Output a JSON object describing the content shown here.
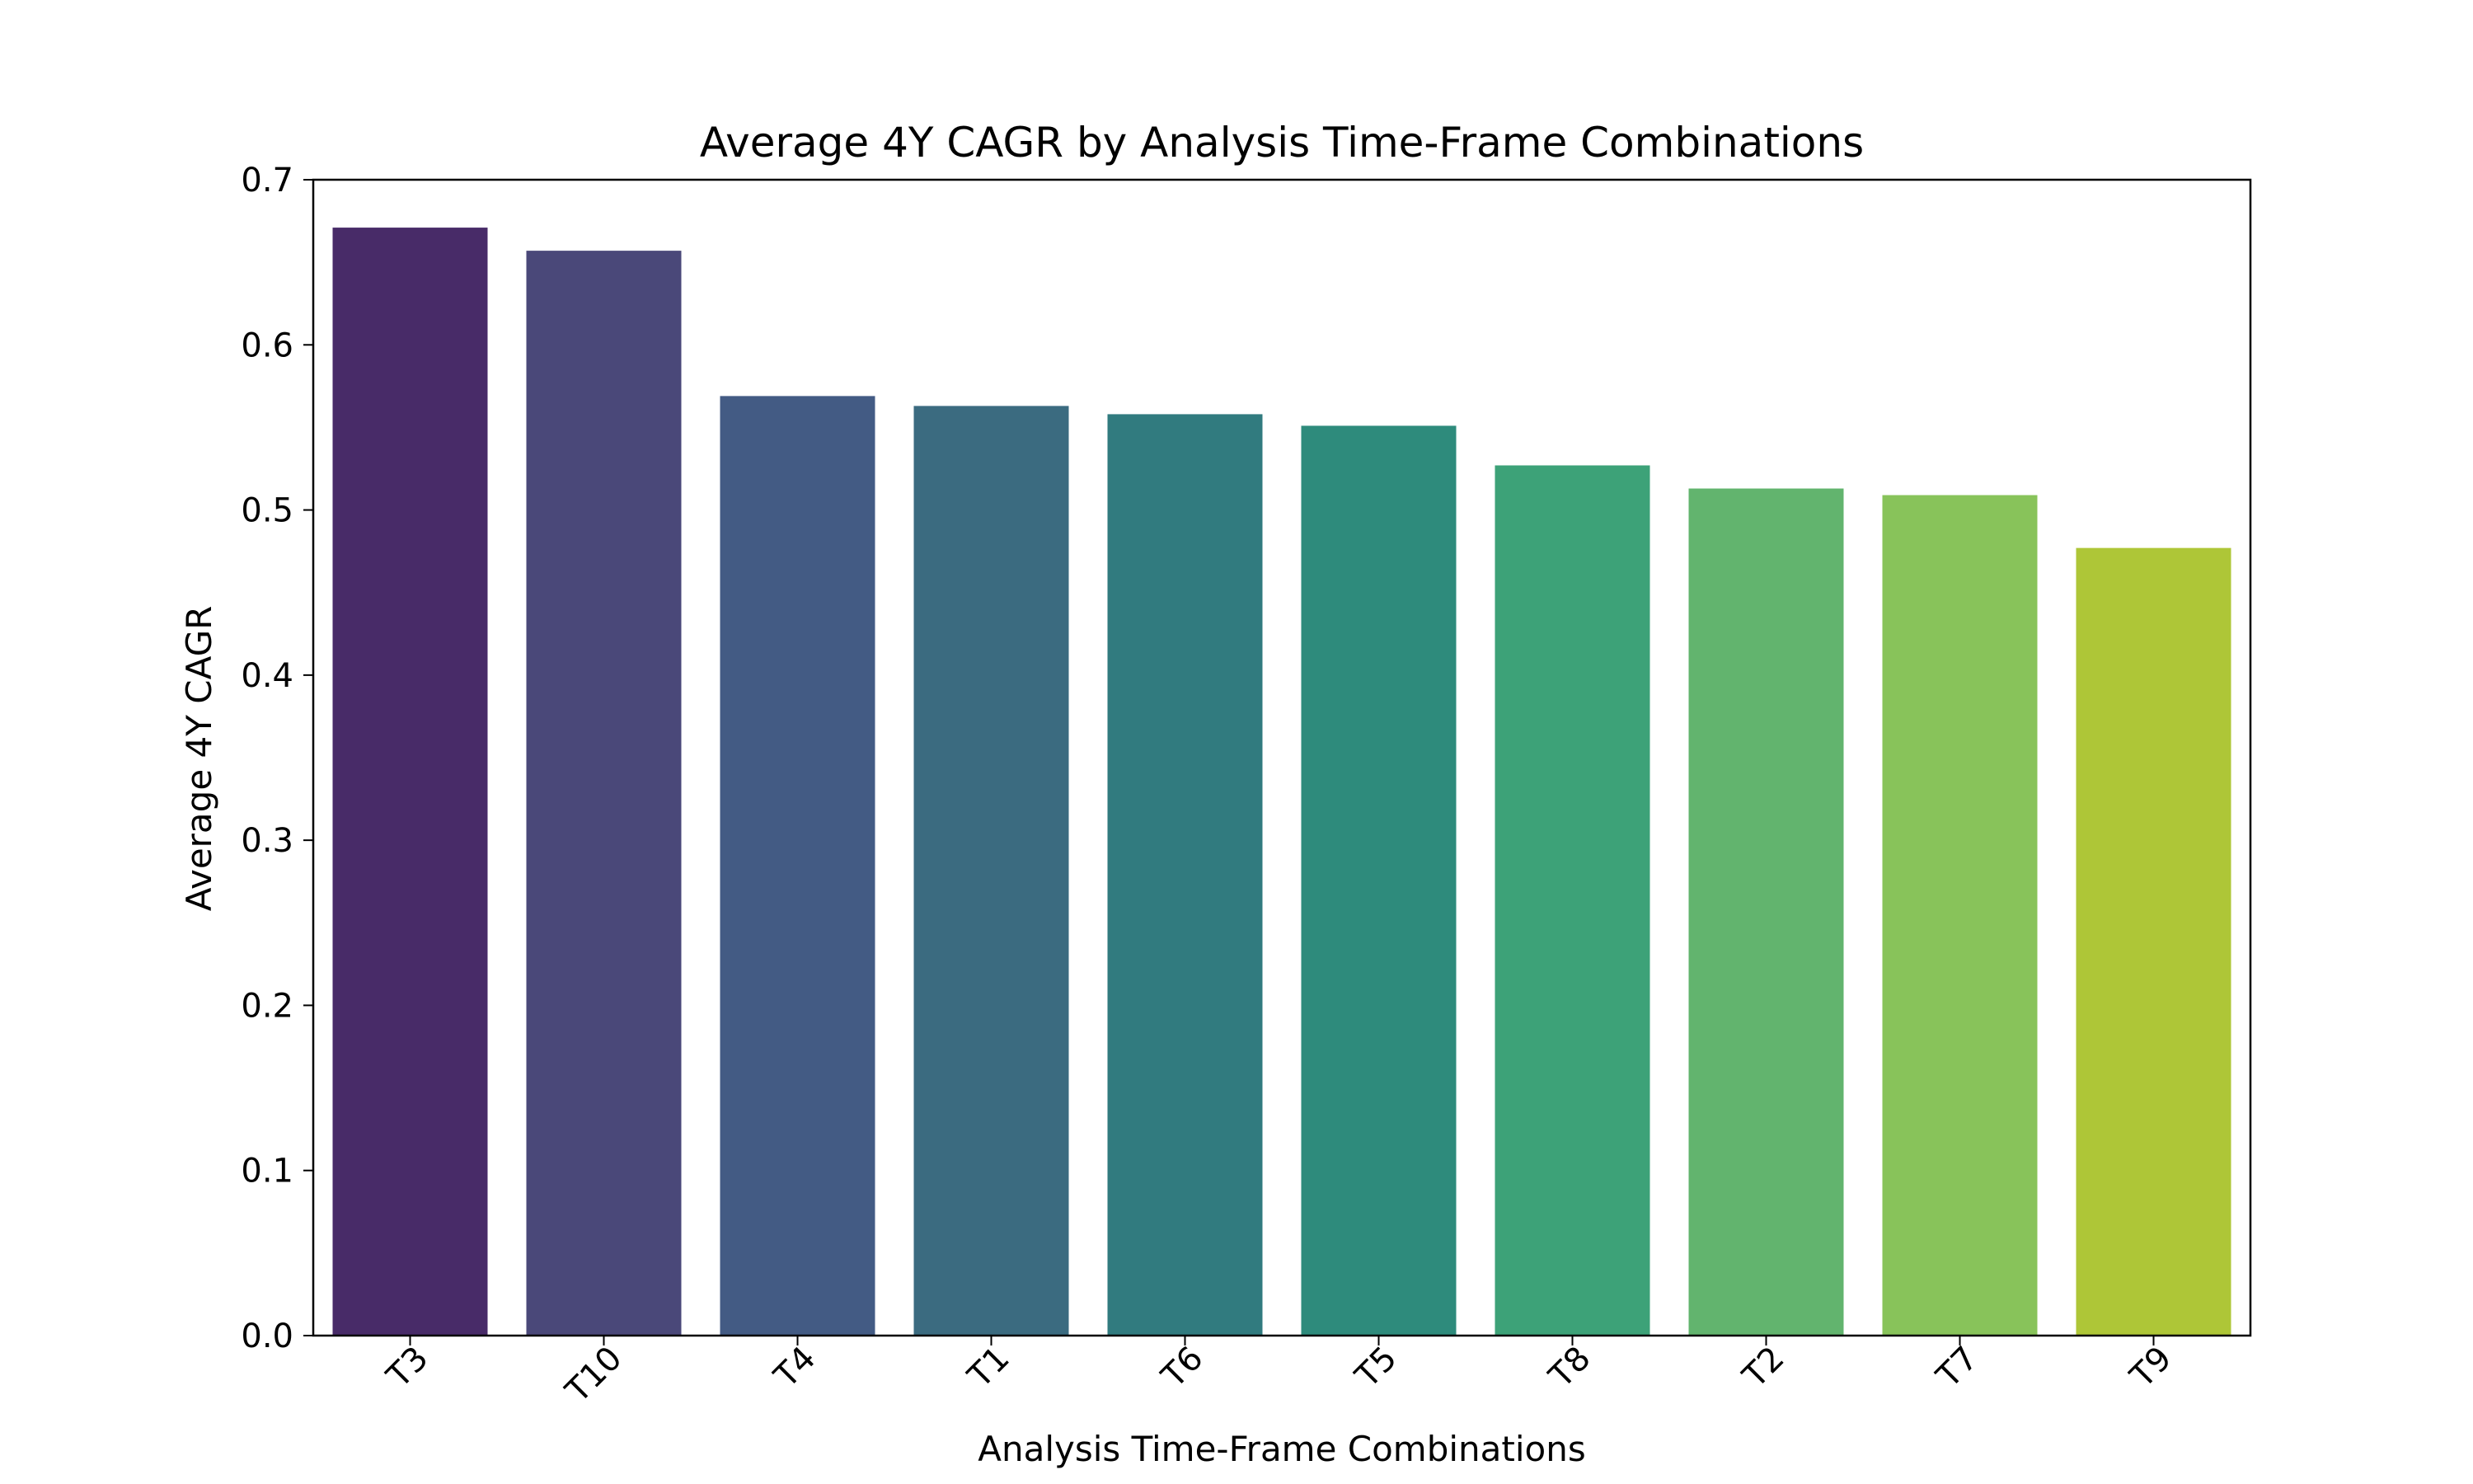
{
  "chart_data": {
    "type": "bar",
    "title": "Average 4Y CAGR by Analysis Time-Frame Combinations",
    "xlabel": "Analysis Time-Frame Combinations",
    "ylabel": "Average 4Y CAGR",
    "categories": [
      "T3",
      "T10",
      "T4",
      "T1",
      "T6",
      "T5",
      "T8",
      "T2",
      "T7",
      "T9"
    ],
    "values": [
      0.671,
      0.657,
      0.569,
      0.563,
      0.558,
      0.551,
      0.527,
      0.513,
      0.509,
      0.477
    ],
    "colors": [
      "#482b68",
      "#4a4879",
      "#435b84",
      "#3b6b80",
      "#317b7f",
      "#2e8b7c",
      "#3da278",
      "#62b46e",
      "#88c35a",
      "#aec637"
    ],
    "ylim": [
      0,
      0.7
    ],
    "yticks": [
      0.0,
      0.1,
      0.2,
      0.3,
      0.4,
      0.5,
      0.6,
      0.7
    ],
    "ytick_labels": [
      "0.0",
      "0.1",
      "0.2",
      "0.3",
      "0.4",
      "0.5",
      "0.6",
      "0.7"
    ],
    "grid": false,
    "legend": "none"
  }
}
